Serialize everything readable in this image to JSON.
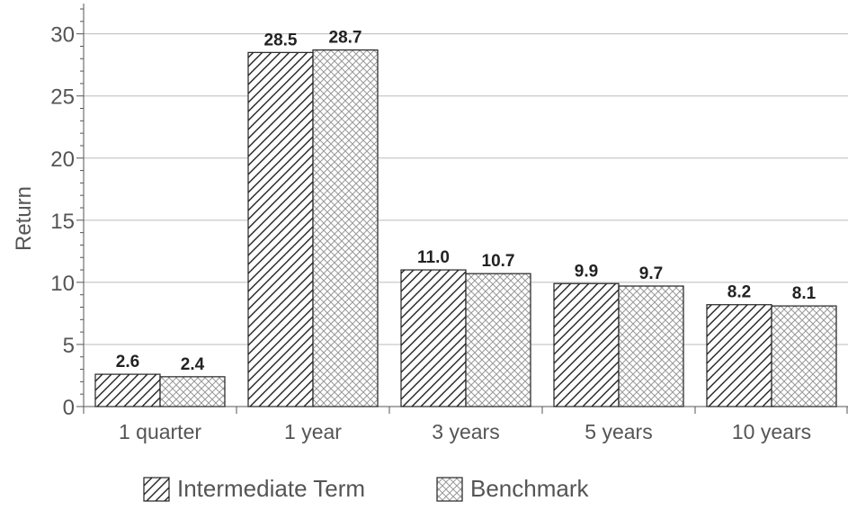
{
  "chart_data": {
    "type": "bar",
    "categories": [
      "1 quarter",
      "1 year",
      "3 years",
      "5 years",
      "10 years"
    ],
    "series": [
      {
        "name": "Intermediate Term",
        "values": [
          2.6,
          28.5,
          11.0,
          9.9,
          8.2
        ],
        "labels": [
          "2.6",
          "28.5",
          "11.0",
          "9.9",
          "8.2"
        ],
        "pattern": "diagonal-hatch"
      },
      {
        "name": "Benchmark",
        "values": [
          2.4,
          28.7,
          10.7,
          9.7,
          8.1
        ],
        "labels": [
          "2.4",
          "28.7",
          "10.7",
          "9.7",
          "8.1"
        ],
        "pattern": "crosshatch"
      }
    ],
    "ylabel": "Return",
    "xlabel": "",
    "ylim": [
      0,
      32
    ],
    "yticks": [
      "0",
      "5",
      "10",
      "15",
      "20",
      "25",
      "30"
    ],
    "grid": true,
    "legend_position": "bottom",
    "colors": {
      "gridline": "#bbbbbb",
      "axis": "#555555",
      "bar_stroke": "#222222"
    }
  }
}
